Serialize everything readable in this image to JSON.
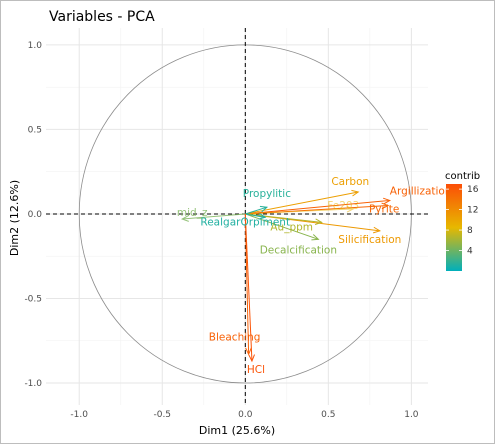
{
  "chart_data": {
    "type": "scatter",
    "title": "Variables - PCA",
    "xlabel": "Dim1 (25.6%)",
    "ylabel": "Dim2 (12.6%)",
    "xlim": [
      -1.2,
      1.1
    ],
    "ylim": [
      -1.13,
      1.1
    ],
    "xticks": [
      -1.0,
      -0.5,
      0.0,
      0.5,
      1.0
    ],
    "xtick_labels": [
      "-1.0",
      "-0.5",
      "0.0",
      "0.5",
      "1.0"
    ],
    "yticks": [
      -1.0,
      -0.5,
      0.0,
      0.5,
      1.0
    ],
    "ytick_labels": [
      "-1.0",
      "-0.5",
      "0.0",
      "0.5",
      "1.0"
    ],
    "grid": true,
    "correlation_circle": true,
    "legend": {
      "title": "contrib",
      "placement": "right",
      "range": [
        0,
        17
      ],
      "ticks": [
        4,
        8,
        12,
        16
      ],
      "tick_labels": [
        "4",
        "8",
        "12",
        "16"
      ],
      "colors": [
        "#00AFBB",
        "#E7B800",
        "#FC4E07"
      ]
    },
    "points": [
      {
        "label": "Argillization",
        "x": 0.87,
        "y": 0.08,
        "contrib": 15.5
      },
      {
        "label": "Carbon",
        "x": 0.68,
        "y": 0.13,
        "contrib": 10.5
      },
      {
        "label": "Pyrite",
        "x": 0.86,
        "y": 0.05,
        "contrib": 15.0
      },
      {
        "label": "Fe203",
        "x": 0.65,
        "y": 0.03,
        "contrib": 9.0
      },
      {
        "label": "Silicification",
        "x": 0.81,
        "y": -0.1,
        "contrib": 11.0
      },
      {
        "label": "Au_ppm",
        "x": 0.46,
        "y": -0.05,
        "contrib": 6.5
      },
      {
        "label": "Decalcification",
        "x": 0.44,
        "y": -0.15,
        "contrib": 5.0
      },
      {
        "label": "Propylitic",
        "x": 0.13,
        "y": 0.04,
        "contrib": 1.5
      },
      {
        "label": "RealgarOrpiment",
        "x": 0.12,
        "y": -0.02,
        "contrib": 1.2
      },
      {
        "label": "mid_z",
        "x": -0.38,
        "y": -0.03,
        "contrib": 4.5
      },
      {
        "label": "Bleaching",
        "x": 0.02,
        "y": -0.83,
        "contrib": 15.5
      },
      {
        "label": "HCl",
        "x": 0.04,
        "y": -0.87,
        "contrib": 16.5
      }
    ]
  }
}
